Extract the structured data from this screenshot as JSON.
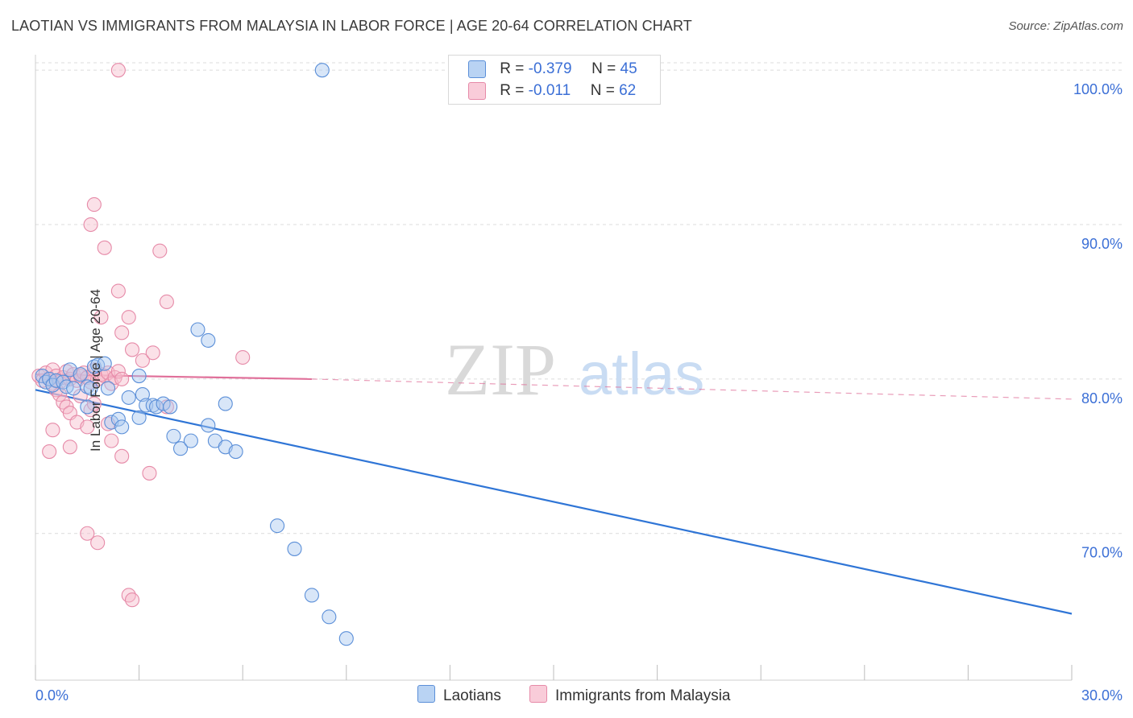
{
  "header": {
    "title": "LAOTIAN VS IMMIGRANTS FROM MALAYSIA IN LABOR FORCE | AGE 20-64 CORRELATION CHART",
    "source": "Source: ZipAtlas.com"
  },
  "legend_top": {
    "rows": [
      {
        "r_label": "R =",
        "r_value": "-0.379",
        "n_label": "N =",
        "n_value": "45"
      },
      {
        "r_label": "R =",
        "r_value": "-0.011",
        "n_label": "N =",
        "n_value": "62"
      }
    ]
  },
  "legend_bottom": {
    "laotians": "Laotians",
    "malaysia": "Immigrants from Malaysia"
  },
  "watermark": {
    "zip": "ZIP",
    "atlas": "atlas"
  },
  "colors": {
    "blue_fill": "#a9c8f0",
    "blue_stroke": "#5b8fd8",
    "blue_line": "#2f75d6",
    "pink_fill": "#f6bccd",
    "pink_stroke": "#e68aa8",
    "pink_line": "#e0709a",
    "axis_text": "#3b6fd6"
  },
  "chart_data": {
    "type": "scatter",
    "title": "LAOTIAN VS IMMIGRANTS FROM MALAYSIA IN LABOR FORCE | AGE 20-64 CORRELATION CHART",
    "xlabel": "",
    "ylabel": "In Labor Force | Age 20-64",
    "xlim": [
      0,
      30
    ],
    "ylim": [
      60.5,
      101
    ],
    "x_tick_labels": [
      "0.0%",
      "30.0%"
    ],
    "y_ticks": [
      70,
      80,
      90,
      100
    ],
    "y_tick_labels": [
      "70.0%",
      "80.0%",
      "90.0%",
      "100.0%"
    ],
    "series": [
      {
        "name": "Laotians",
        "r": -0.379,
        "n": 45,
        "points": [
          [
            0.2,
            80.2
          ],
          [
            0.3,
            79.8
          ],
          [
            0.4,
            80.0
          ],
          [
            0.5,
            79.6
          ],
          [
            0.6,
            79.9
          ],
          [
            0.8,
            79.8
          ],
          [
            0.9,
            79.5
          ],
          [
            1.0,
            80.6
          ],
          [
            1.1,
            79.4
          ],
          [
            1.3,
            80.3
          ],
          [
            1.5,
            79.5
          ],
          [
            1.5,
            78.2
          ],
          [
            1.6,
            79.4
          ],
          [
            1.7,
            80.8
          ],
          [
            1.8,
            80.9
          ],
          [
            2.0,
            81.0
          ],
          [
            2.1,
            79.4
          ],
          [
            2.2,
            77.2
          ],
          [
            2.4,
            77.4
          ],
          [
            2.5,
            76.9
          ],
          [
            2.7,
            78.8
          ],
          [
            3.0,
            80.2
          ],
          [
            3.0,
            77.5
          ],
          [
            3.1,
            79.0
          ],
          [
            3.2,
            78.3
          ],
          [
            3.4,
            78.3
          ],
          [
            3.5,
            78.2
          ],
          [
            3.7,
            78.4
          ],
          [
            3.9,
            78.2
          ],
          [
            4.0,
            76.3
          ],
          [
            4.2,
            75.5
          ],
          [
            4.5,
            76.0
          ],
          [
            5.0,
            77.0
          ],
          [
            5.2,
            76.0
          ],
          [
            5.5,
            75.6
          ],
          [
            5.8,
            75.3
          ],
          [
            7.0,
            70.5
          ],
          [
            7.5,
            69.0
          ],
          [
            8.0,
            66.0
          ],
          [
            8.5,
            64.6
          ],
          [
            9.0,
            63.2
          ],
          [
            4.7,
            83.2
          ],
          [
            5.0,
            82.5
          ],
          [
            5.5,
            78.4
          ],
          [
            8.3,
            100.0
          ]
        ],
        "trend": {
          "x0": 0,
          "y0": 79.3,
          "x1": 30,
          "y1": 64.8
        }
      },
      {
        "name": "Immigrants from Malaysia",
        "r": -0.011,
        "n": 62,
        "points": [
          [
            0.1,
            80.2
          ],
          [
            0.2,
            79.9
          ],
          [
            0.3,
            80.4
          ],
          [
            0.4,
            80.0
          ],
          [
            0.5,
            79.7
          ],
          [
            0.5,
            80.6
          ],
          [
            0.6,
            80.2
          ],
          [
            0.7,
            79.8
          ],
          [
            0.8,
            80.1
          ],
          [
            0.9,
            80.5
          ],
          [
            1.0,
            80.0
          ],
          [
            1.1,
            80.3
          ],
          [
            1.2,
            79.9
          ],
          [
            1.3,
            80.2
          ],
          [
            1.4,
            80.4
          ],
          [
            1.5,
            80.1
          ],
          [
            1.6,
            79.8
          ],
          [
            1.7,
            80.6
          ],
          [
            1.8,
            80.0
          ],
          [
            1.9,
            80.3
          ],
          [
            2.0,
            80.2
          ],
          [
            2.1,
            80.4
          ],
          [
            2.2,
            79.7
          ],
          [
            2.3,
            80.1
          ],
          [
            2.4,
            80.5
          ],
          [
            2.5,
            80.0
          ],
          [
            0.6,
            79.3
          ],
          [
            0.7,
            79.0
          ],
          [
            0.8,
            78.5
          ],
          [
            0.9,
            78.2
          ],
          [
            1.0,
            77.8
          ],
          [
            1.2,
            77.2
          ],
          [
            1.3,
            78.9
          ],
          [
            1.5,
            76.9
          ],
          [
            1.6,
            78.0
          ],
          [
            1.7,
            78.4
          ],
          [
            2.1,
            77.1
          ],
          [
            2.2,
            76.0
          ],
          [
            2.5,
            75.0
          ],
          [
            1.0,
            75.6
          ],
          [
            0.5,
            76.7
          ],
          [
            1.5,
            70.0
          ],
          [
            1.8,
            69.4
          ],
          [
            2.7,
            66.0
          ],
          [
            2.8,
            65.7
          ],
          [
            3.3,
            73.9
          ],
          [
            3.8,
            78.2
          ],
          [
            1.6,
            90.0
          ],
          [
            1.7,
            91.3
          ],
          [
            2.0,
            88.5
          ],
          [
            1.9,
            84.0
          ],
          [
            2.4,
            85.7
          ],
          [
            2.7,
            84.0
          ],
          [
            3.6,
            88.3
          ],
          [
            3.8,
            85.0
          ],
          [
            2.5,
            83.0
          ],
          [
            2.8,
            81.9
          ],
          [
            3.1,
            81.2
          ],
          [
            3.4,
            81.7
          ],
          [
            6.0,
            81.4
          ],
          [
            0.4,
            75.3
          ],
          [
            2.4,
            100.0
          ]
        ],
        "trend": {
          "x0": 0,
          "y0": 80.3,
          "x1": 8,
          "y1": 80.0
        },
        "trend_extension": {
          "x0": 8,
          "y0": 80.0,
          "x1": 30,
          "y1": 78.7
        }
      }
    ]
  }
}
